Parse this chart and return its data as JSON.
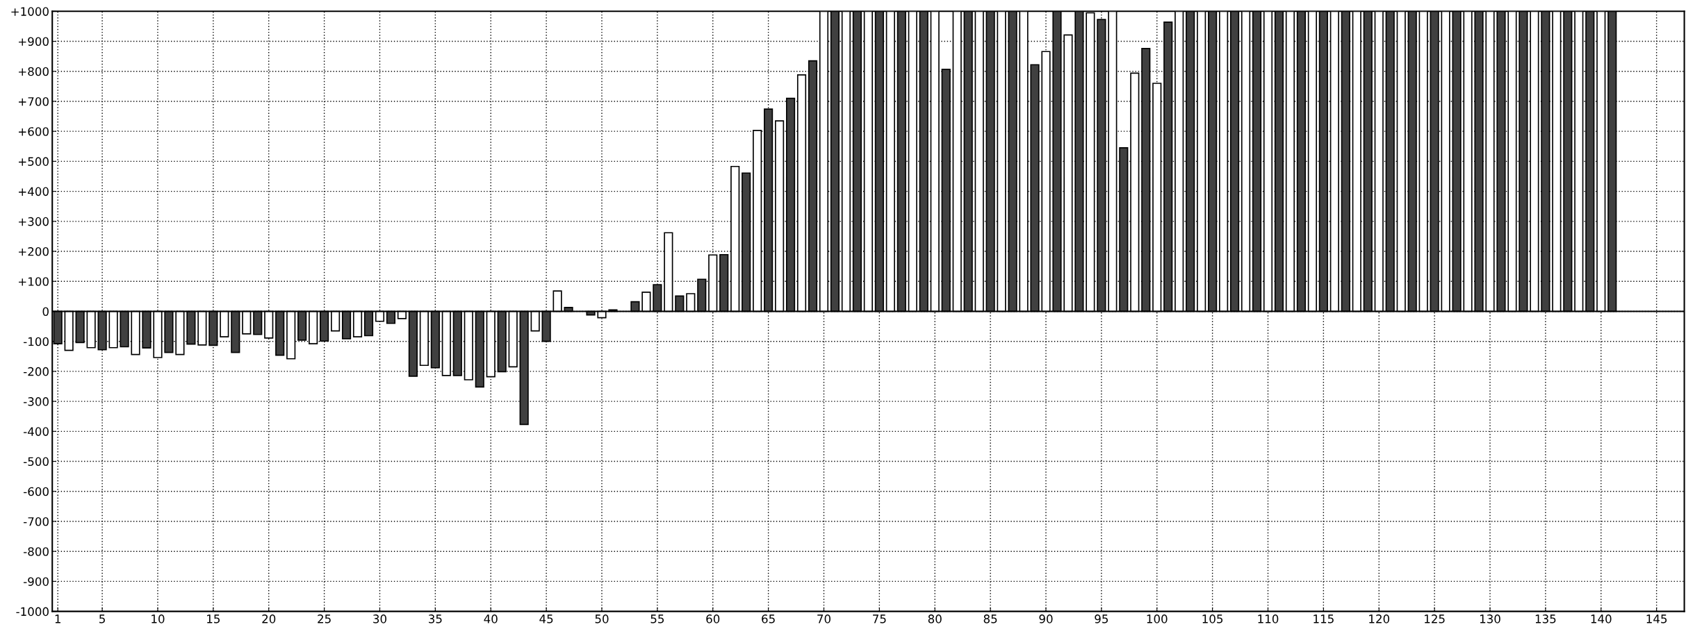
{
  "chart_data": {
    "type": "bar",
    "series": [
      {
        "color": "#404040",
        "x": [
          1,
          3,
          5,
          7,
          9,
          11,
          13,
          15,
          17,
          19,
          21,
          23,
          25,
          27,
          29,
          31,
          33,
          35,
          37,
          39,
          41,
          43,
          45,
          47,
          49,
          51,
          53,
          55,
          57,
          59,
          61,
          63,
          65,
          67,
          69,
          71,
          73,
          75,
          77,
          79,
          81,
          83,
          85,
          87,
          89,
          91,
          93,
          95,
          97,
          99,
          101,
          103,
          105,
          107,
          109,
          111,
          113,
          115,
          117,
          119,
          121,
          123,
          125,
          127,
          129,
          131,
          133,
          135,
          137,
          139,
          141
        ],
        "values": [
          -108,
          -104,
          -128,
          -118,
          -122,
          -137,
          -109,
          -113,
          -137,
          -77,
          -146,
          -96,
          -99,
          -91,
          -81,
          -40,
          -216,
          -188,
          -214,
          -252,
          -201,
          -377,
          -100,
          13,
          -12,
          5,
          32,
          89,
          51,
          107,
          189,
          461,
          674,
          710,
          835,
          1000,
          1000,
          1000,
          1000,
          1000,
          807,
          1000,
          1000,
          1000,
          822,
          1000,
          1000,
          973,
          545,
          876,
          964,
          1000,
          1000,
          1000,
          1000,
          1000,
          1000,
          1000,
          1000,
          1000,
          1000,
          1000,
          1000,
          1000,
          1000,
          1000,
          1000,
          1000,
          1000,
          1000,
          1000
        ]
      },
      {
        "color": "#ffffff",
        "x": [
          2,
          4,
          6,
          8,
          10,
          12,
          14,
          16,
          18,
          20,
          22,
          24,
          26,
          28,
          30,
          32,
          34,
          36,
          38,
          40,
          42,
          44,
          46,
          48,
          50,
          52,
          54,
          56,
          58,
          60,
          62,
          64,
          66,
          68,
          70,
          72,
          74,
          76,
          78,
          80,
          82,
          84,
          86,
          88,
          90,
          92,
          94,
          96,
          98,
          100,
          102,
          104,
          106,
          108,
          110,
          112,
          114,
          116,
          118,
          120,
          122,
          124,
          126,
          128,
          130,
          132,
          134,
          136,
          138,
          140
        ],
        "values": [
          -130,
          -121,
          -121,
          -144,
          -154,
          -144,
          -112,
          -85,
          -75,
          -89,
          -158,
          -108,
          -65,
          -85,
          -33,
          -24,
          -180,
          -214,
          -228,
          -218,
          -185,
          -65,
          68,
          null,
          -21,
          null,
          64,
          262,
          59,
          188,
          483,
          603,
          635,
          788,
          1000,
          1000,
          1000,
          1000,
          1000,
          1000,
          1000,
          1000,
          1000,
          1000,
          866,
          921,
          995,
          1000,
          794,
          760,
          1000,
          1000,
          1000,
          1000,
          1000,
          1000,
          1000,
          1000,
          1000,
          1000,
          1000,
          1000,
          1000,
          1000,
          1000,
          1000,
          1000,
          1000,
          1000,
          1000
        ]
      }
    ],
    "xlim": [
      0.5,
      147.5
    ],
    "xticks": [
      1,
      5,
      10,
      15,
      20,
      25,
      30,
      35,
      40,
      45,
      50,
      55,
      60,
      65,
      70,
      75,
      80,
      85,
      90,
      95,
      100,
      105,
      110,
      115,
      120,
      125,
      130,
      135,
      140,
      145
    ],
    "ylim": [
      -1000,
      1000
    ],
    "yticks": [
      {
        "value": -1000,
        "label": "-1000"
      },
      {
        "value": -900,
        "label": "-900"
      },
      {
        "value": -800,
        "label": "-800"
      },
      {
        "value": -700,
        "label": "-700"
      },
      {
        "value": -600,
        "label": "-600"
      },
      {
        "value": -500,
        "label": "-500"
      },
      {
        "value": -400,
        "label": "-400"
      },
      {
        "value": -300,
        "label": "-300"
      },
      {
        "value": -200,
        "label": "-200"
      },
      {
        "value": -100,
        "label": "-100"
      },
      0,
      {
        "value": 100,
        "label": "+100"
      },
      {
        "value": 200,
        "label": "+200"
      },
      {
        "value": 300,
        "label": "+300"
      },
      {
        "value": 400,
        "label": "+400"
      },
      {
        "value": 500,
        "label": "+500"
      },
      {
        "value": 600,
        "label": "+600"
      },
      {
        "value": 700,
        "label": "+700"
      },
      {
        "value": 800,
        "label": "+800"
      },
      {
        "value": 900,
        "label": "+900"
      },
      {
        "value": 1000,
        "label": "+1000"
      }
    ],
    "ref_lines": [
      {
        "axis": "y",
        "value": 0,
        "color": "#000000"
      }
    ],
    "grid": true
  }
}
